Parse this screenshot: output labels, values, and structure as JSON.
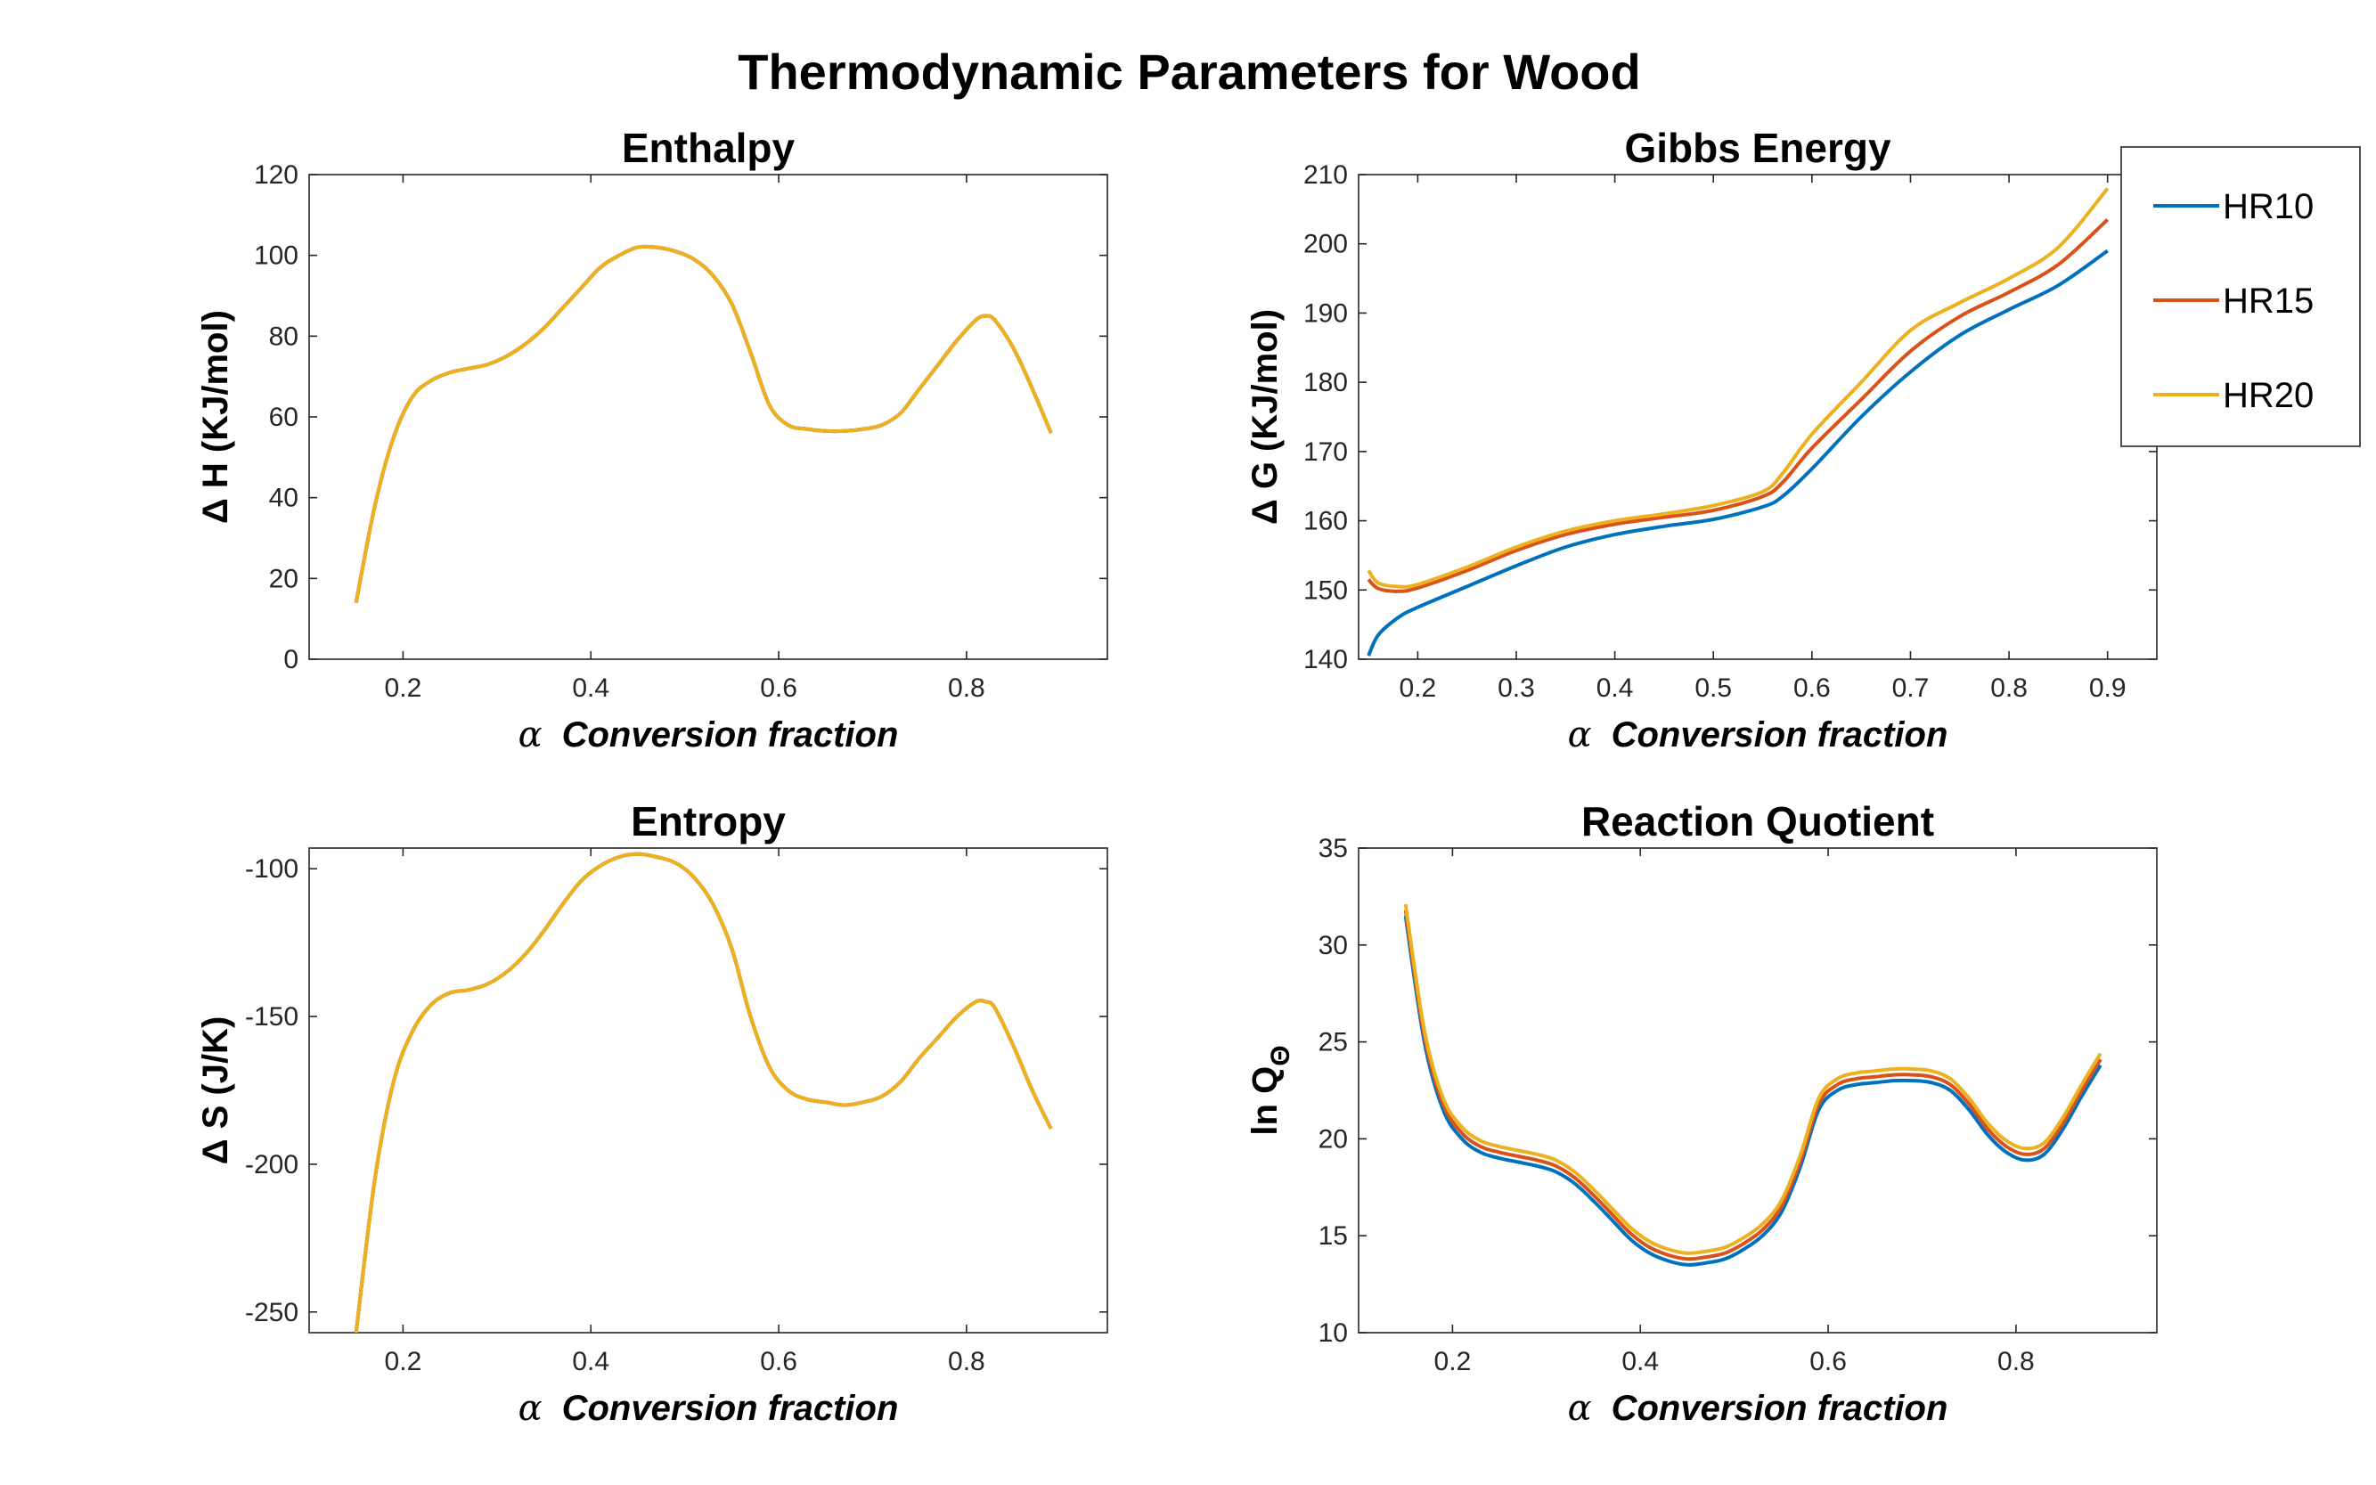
{
  "figure_title": "Thermodynamic Parameters for Wood",
  "colors": {
    "HR10": "#0072BD",
    "HR15": "#D95319",
    "HR20": "#EDB120"
  },
  "legend": {
    "entries": [
      "HR10",
      "HR15",
      "HR20"
    ],
    "placement": "top-right (outside Gibbs Energy axes)"
  },
  "chart_data": [
    {
      "id": "enthalpy",
      "type": "line",
      "title": "Enthalpy",
      "xlabel_symbol": "α",
      "xlabel": "Conversion fraction",
      "ylabel": "Δ H (KJ/mol)",
      "xlim": [
        0.1,
        0.95
      ],
      "ylim": [
        0,
        120
      ],
      "xticks": [
        0.2,
        0.4,
        0.6,
        0.8
      ],
      "yticks": [
        0,
        20,
        40,
        60,
        80,
        100,
        120
      ],
      "x": [
        0.15,
        0.17,
        0.19,
        0.21,
        0.23,
        0.25,
        0.27,
        0.29,
        0.31,
        0.33,
        0.35,
        0.37,
        0.39,
        0.41,
        0.43,
        0.45,
        0.47,
        0.49,
        0.51,
        0.53,
        0.55,
        0.57,
        0.59,
        0.61,
        0.63,
        0.65,
        0.67,
        0.69,
        0.71,
        0.73,
        0.75,
        0.77,
        0.79,
        0.81,
        0.82,
        0.83,
        0.85,
        0.87,
        0.89
      ],
      "series": [
        {
          "name": "HR10",
          "values": [
            14,
            38,
            55,
            65,
            69,
            71,
            72,
            73,
            75,
            78,
            82,
            87,
            92,
            97,
            100,
            102,
            102,
            101,
            99,
            95,
            88,
            76,
            63,
            58,
            57,
            56.5,
            56.5,
            57,
            58,
            61,
            67,
            73,
            79,
            84,
            85,
            84,
            77,
            67,
            56
          ]
        },
        {
          "name": "HR15",
          "values": [
            14,
            38,
            55,
            65,
            69,
            71,
            72,
            73,
            75,
            78,
            82,
            87,
            92,
            97,
            100,
            102,
            102,
            101,
            99,
            95,
            88,
            76,
            63,
            58,
            57,
            56.5,
            56.5,
            57,
            58,
            61,
            67,
            73,
            79,
            84,
            85,
            84,
            77,
            67,
            56
          ]
        },
        {
          "name": "HR20",
          "values": [
            14,
            38,
            55,
            65,
            69,
            71,
            72,
            73,
            75,
            78,
            82,
            87,
            92,
            97,
            100,
            102,
            102,
            101,
            99,
            95,
            88,
            76,
            63,
            58,
            57,
            56.5,
            56.5,
            57,
            58,
            61,
            67,
            73,
            79,
            84,
            85,
            84,
            77,
            67,
            56
          ]
        }
      ]
    },
    {
      "id": "gibbs",
      "type": "line",
      "title": "Gibbs Energy",
      "xlabel_symbol": "α",
      "xlabel": "Conversion fraction",
      "ylabel": "Δ G (KJ/mol)",
      "xlim": [
        0.14,
        0.95
      ],
      "ylim": [
        140,
        210
      ],
      "xticks": [
        0.2,
        0.3,
        0.4,
        0.5,
        0.6,
        0.7,
        0.8,
        0.9
      ],
      "yticks": [
        140,
        150,
        160,
        170,
        180,
        190,
        200,
        210
      ],
      "x": [
        0.15,
        0.16,
        0.18,
        0.2,
        0.25,
        0.3,
        0.35,
        0.4,
        0.45,
        0.5,
        0.55,
        0.57,
        0.6,
        0.65,
        0.7,
        0.75,
        0.8,
        0.85,
        0.9
      ],
      "series": [
        {
          "name": "HR10",
          "values": [
            140.5,
            143.5,
            146,
            147.5,
            150.5,
            153.5,
            156.2,
            158,
            159.2,
            160.2,
            162,
            163.5,
            167.5,
            175,
            181.5,
            186.8,
            190.5,
            194,
            199
          ]
        },
        {
          "name": "HR15",
          "values": [
            151.5,
            150.2,
            149.8,
            150.3,
            152.8,
            155.7,
            158,
            159.5,
            160.5,
            161.5,
            163.5,
            165.5,
            170.5,
            177.5,
            184.5,
            189.5,
            193,
            197,
            203.5
          ]
        },
        {
          "name": "HR20",
          "values": [
            152.8,
            151,
            150.5,
            150.8,
            153.3,
            156.2,
            158.5,
            160,
            161,
            162.2,
            164.2,
            166.8,
            172.5,
            180,
            187.5,
            191.5,
            195,
            199.5,
            208
          ]
        }
      ]
    },
    {
      "id": "entropy",
      "type": "line",
      "title": "Entropy",
      "xlabel_symbol": "α",
      "xlabel": "Conversion fraction",
      "ylabel": "Δ S (J/K)",
      "xlim": [
        0.1,
        0.95
      ],
      "ylim": [
        -257,
        -93
      ],
      "xticks": [
        0.2,
        0.4,
        0.6,
        0.8
      ],
      "yticks": [
        -250,
        -200,
        -150,
        -100
      ],
      "x": [
        0.15,
        0.17,
        0.19,
        0.21,
        0.23,
        0.25,
        0.27,
        0.29,
        0.31,
        0.33,
        0.35,
        0.37,
        0.39,
        0.41,
        0.43,
        0.45,
        0.47,
        0.49,
        0.51,
        0.53,
        0.55,
        0.57,
        0.59,
        0.61,
        0.63,
        0.65,
        0.67,
        0.69,
        0.71,
        0.73,
        0.75,
        0.77,
        0.79,
        0.81,
        0.82,
        0.83,
        0.85,
        0.87,
        0.89
      ],
      "series": [
        {
          "name": "HR10",
          "values": [
            -257,
            -205,
            -172,
            -155,
            -146,
            -142,
            -141,
            -139,
            -135,
            -129,
            -121,
            -112,
            -104,
            -99,
            -96,
            -95,
            -96,
            -98,
            -103,
            -112,
            -127,
            -150,
            -167,
            -175,
            -178,
            -179,
            -180,
            -179,
            -177,
            -172,
            -164,
            -157,
            -150,
            -145,
            -145,
            -147,
            -160,
            -175,
            -188
          ]
        },
        {
          "name": "HR15",
          "values": [
            -257,
            -205,
            -172,
            -155,
            -146,
            -142,
            -141,
            -139,
            -135,
            -129,
            -121,
            -112,
            -104,
            -99,
            -96,
            -95,
            -96,
            -98,
            -103,
            -112,
            -127,
            -150,
            -167,
            -175,
            -178,
            -179,
            -180,
            -179,
            -177,
            -172,
            -164,
            -157,
            -150,
            -145,
            -145,
            -147,
            -160,
            -175,
            -188
          ]
        },
        {
          "name": "HR20",
          "values": [
            -257,
            -205,
            -172,
            -155,
            -146,
            -142,
            -141,
            -139,
            -135,
            -129,
            -121,
            -112,
            -104,
            -99,
            -96,
            -95,
            -96,
            -98,
            -103,
            -112,
            -127,
            -150,
            -167,
            -175,
            -178,
            -179,
            -180,
            -179,
            -177,
            -172,
            -164,
            -157,
            -150,
            -145,
            -145,
            -147,
            -160,
            -175,
            -188
          ]
        }
      ]
    },
    {
      "id": "quotient",
      "type": "line",
      "title": "Reaction Quotient",
      "xlabel_symbol": "α",
      "xlabel": "Conversion fraction",
      "ylabel": "ln Q",
      "ylabel_subscript": "Θ",
      "xlim": [
        0.1,
        0.95
      ],
      "ylim": [
        10,
        35
      ],
      "xticks": [
        0.2,
        0.4,
        0.6,
        0.8
      ],
      "yticks": [
        10,
        15,
        20,
        25,
        30,
        35
      ],
      "x": [
        0.15,
        0.17,
        0.19,
        0.21,
        0.23,
        0.25,
        0.27,
        0.29,
        0.31,
        0.33,
        0.35,
        0.37,
        0.39,
        0.41,
        0.43,
        0.45,
        0.47,
        0.49,
        0.51,
        0.53,
        0.55,
        0.57,
        0.59,
        0.61,
        0.63,
        0.65,
        0.67,
        0.69,
        0.71,
        0.73,
        0.75,
        0.77,
        0.79,
        0.81,
        0.83,
        0.85,
        0.87,
        0.89
      ],
      "series": [
        {
          "name": "HR10",
          "values": [
            31.5,
            25,
            21.5,
            20,
            19.3,
            19,
            18.8,
            18.6,
            18.3,
            17.7,
            16.8,
            15.8,
            14.8,
            14.1,
            13.7,
            13.5,
            13.6,
            13.8,
            14.3,
            15,
            16.2,
            18.5,
            21.5,
            22.5,
            22.8,
            22.9,
            23,
            23,
            22.9,
            22.5,
            21.5,
            20.2,
            19.3,
            18.9,
            19.2,
            20.5,
            22.2,
            23.8
          ]
        },
        {
          "name": "HR15",
          "values": [
            31.8,
            25.3,
            21.8,
            20.3,
            19.6,
            19.3,
            19.1,
            18.9,
            18.6,
            18,
            17.1,
            16.1,
            15.1,
            14.4,
            14,
            13.8,
            13.9,
            14.1,
            14.6,
            15.3,
            16.5,
            18.8,
            21.8,
            22.8,
            23.1,
            23.2,
            23.3,
            23.3,
            23.2,
            22.8,
            21.8,
            20.5,
            19.6,
            19.2,
            19.5,
            20.8,
            22.5,
            24.1
          ]
        },
        {
          "name": "HR20",
          "values": [
            32.1,
            25.6,
            22.1,
            20.6,
            19.9,
            19.6,
            19.4,
            19.2,
            18.9,
            18.3,
            17.4,
            16.4,
            15.4,
            14.7,
            14.3,
            14.1,
            14.2,
            14.4,
            14.9,
            15.6,
            16.8,
            19.1,
            22.1,
            23.1,
            23.4,
            23.5,
            23.6,
            23.6,
            23.5,
            23.1,
            22.1,
            20.8,
            19.9,
            19.5,
            19.8,
            21.1,
            22.8,
            24.4
          ]
        }
      ]
    }
  ]
}
